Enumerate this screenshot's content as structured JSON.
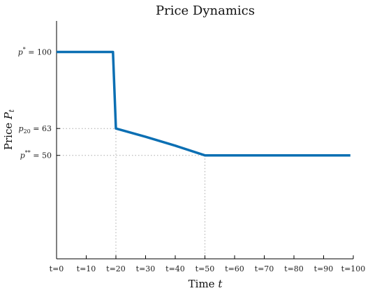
{
  "chart_data": {
    "type": "line",
    "title": "Price Dynamics",
    "xlabel": "Time t",
    "ylabel": "Price P_t",
    "xlim": [
      0,
      100
    ],
    "ylim": [
      0,
      115
    ],
    "xticks": [
      0,
      10,
      20,
      30,
      40,
      50,
      60,
      70,
      80,
      90,
      100
    ],
    "xtick_labels": [
      "t=0",
      "t=10",
      "t=20",
      "t=30",
      "t=40",
      "t=50",
      "t=60",
      "t=70",
      "t=80",
      "t=90",
      "t=100"
    ],
    "yticks": [
      {
        "value": 100,
        "label": "p* = 100"
      },
      {
        "value": 63,
        "label": "p20 = 63"
      },
      {
        "value": 50,
        "label": "p** = 50"
      }
    ],
    "grid": false,
    "legend": "none",
    "color": "#0b6fb3",
    "series": [
      {
        "x": [
          0,
          19,
          20,
          30,
          40,
          50,
          60,
          70,
          80,
          90,
          99
        ],
        "y": [
          100,
          100,
          63,
          59,
          54.7,
          50,
          50,
          50,
          50,
          50,
          50
        ]
      }
    ],
    "guides": [
      {
        "x": 20,
        "y": 63
      },
      {
        "x": 50,
        "y": 50
      }
    ]
  }
}
